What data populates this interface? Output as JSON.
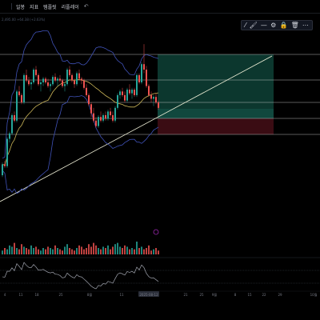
{
  "topbar": {
    "items": [
      {
        "label": "",
        "icon": "logo-icon"
      },
      {
        "label": ""
      },
      {
        "label": "일봉"
      },
      {
        "label": "지표"
      },
      {
        "label": "템플릿"
      },
      {
        "label": "리플레이"
      },
      {
        "label": "",
        "icon": "undo-icon"
      }
    ]
  },
  "status_line": "2,495.00 +64.38 (+2.63%)",
  "drawing_toolbar": {
    "tools": [
      {
        "icon": "pencil-icon",
        "glyph": "⁄"
      },
      {
        "icon": "palette-icon",
        "glyph": "🖌"
      },
      {
        "icon": "line-width-icon",
        "glyph": "—"
      },
      {
        "icon": "settings-icon",
        "glyph": "⚙"
      },
      {
        "icon": "lock-icon",
        "glyph": "🔒"
      },
      {
        "icon": "delete-icon",
        "glyph": "🗑"
      },
      {
        "icon": "more-icon",
        "glyph": "⋯"
      }
    ]
  },
  "time_axis": {
    "labels": [
      "4",
      "11",
      "18",
      "25",
      "8월",
      "11",
      "2025-08-12",
      "21",
      "25",
      "9월",
      "8",
      "15",
      "22",
      "29",
      "10월"
    ],
    "highlighted": "2025-08-12"
  },
  "colors": {
    "up": "#26a69a",
    "down": "#ef5350",
    "band": "#3f51b5",
    "ma": "#c9b458",
    "trendline": "#f0f0d8",
    "hline": "#d4d4d4",
    "profit_zone": "#0d3a30",
    "loss_zone": "#3d0d14"
  },
  "chart_data": {
    "type": "candlestick",
    "candles": [
      [
        2088,
        2130,
        2082,
        2124
      ],
      [
        2124,
        2136,
        2112,
        2118
      ],
      [
        2118,
        2214,
        2112,
        2208
      ],
      [
        2208,
        2232,
        2196,
        2226
      ],
      [
        2226,
        2292,
        2220,
        2286
      ],
      [
        2286,
        2298,
        2262,
        2268
      ],
      [
        2268,
        2370,
        2262,
        2364
      ],
      [
        2364,
        2382,
        2346,
        2352
      ],
      [
        2352,
        2358,
        2322,
        2328
      ],
      [
        2328,
        2424,
        2322,
        2418
      ],
      [
        2418,
        2436,
        2394,
        2400
      ],
      [
        2400,
        2412,
        2382,
        2388
      ],
      [
        2388,
        2400,
        2370,
        2394
      ],
      [
        2394,
        2442,
        2388,
        2436
      ],
      [
        2436,
        2448,
        2412,
        2418
      ],
      [
        2418,
        2424,
        2382,
        2388
      ],
      [
        2388,
        2400,
        2364,
        2394
      ],
      [
        2394,
        2412,
        2382,
        2406
      ],
      [
        2406,
        2412,
        2388,
        2394
      ],
      [
        2394,
        2406,
        2376,
        2382
      ],
      [
        2382,
        2394,
        2364,
        2388
      ],
      [
        2388,
        2418,
        2382,
        2412
      ],
      [
        2412,
        2424,
        2394,
        2400
      ],
      [
        2400,
        2412,
        2382,
        2406
      ],
      [
        2406,
        2418,
        2394,
        2400
      ],
      [
        2400,
        2406,
        2376,
        2382
      ],
      [
        2382,
        2394,
        2364,
        2388
      ],
      [
        2388,
        2442,
        2382,
        2436
      ],
      [
        2436,
        2448,
        2412,
        2418
      ],
      [
        2418,
        2424,
        2394,
        2400
      ],
      [
        2400,
        2406,
        2376,
        2388
      ],
      [
        2388,
        2430,
        2382,
        2424
      ],
      [
        2424,
        2436,
        2400,
        2406
      ],
      [
        2406,
        2412,
        2388,
        2400
      ],
      [
        2400,
        2406,
        2370,
        2376
      ],
      [
        2376,
        2388,
        2346,
        2352
      ],
      [
        2352,
        2358,
        2316,
        2322
      ],
      [
        2322,
        2328,
        2280,
        2292
      ],
      [
        2292,
        2310,
        2262,
        2268
      ],
      [
        2268,
        2280,
        2244,
        2250
      ],
      [
        2250,
        2286,
        2244,
        2280
      ],
      [
        2280,
        2298,
        2262,
        2268
      ],
      [
        2268,
        2292,
        2262,
        2286
      ],
      [
        2286,
        2298,
        2268,
        2274
      ],
      [
        2274,
        2304,
        2268,
        2298
      ],
      [
        2298,
        2310,
        2280,
        2286
      ],
      [
        2286,
        2298,
        2262,
        2268
      ],
      [
        2268,
        2316,
        2262,
        2310
      ],
      [
        2310,
        2358,
        2304,
        2352
      ],
      [
        2352,
        2370,
        2340,
        2364
      ],
      [
        2364,
        2376,
        2346,
        2352
      ],
      [
        2352,
        2364,
        2328,
        2334
      ],
      [
        2334,
        2376,
        2328,
        2370
      ],
      [
        2370,
        2388,
        2352,
        2358
      ],
      [
        2358,
        2376,
        2340,
        2370
      ],
      [
        2370,
        2376,
        2346,
        2352
      ],
      [
        2352,
        2424,
        2346,
        2418
      ],
      [
        2418,
        2424,
        2388,
        2394
      ],
      [
        2394,
        2460,
        2388,
        2454
      ],
      [
        2454,
        2520,
        2424,
        2436
      ],
      [
        2436,
        2448,
        2376,
        2382
      ],
      [
        2382,
        2388,
        2346,
        2352
      ],
      [
        2352,
        2364,
        2328,
        2340
      ],
      [
        2340,
        2352,
        2316,
        2346
      ],
      [
        2346,
        2358,
        2322,
        2328
      ],
      [
        2328,
        2334,
        2304,
        2310
      ]
    ],
    "volume_scale": [
      3,
      5,
      4,
      7,
      6,
      9,
      5,
      4,
      8,
      6,
      5,
      4,
      7,
      5,
      6,
      4,
      3,
      5,
      4,
      6,
      5,
      4,
      7,
      5,
      4,
      3,
      6,
      8,
      5,
      4,
      3,
      5,
      7,
      6,
      4,
      5,
      8,
      6,
      9,
      7,
      5,
      4,
      6,
      5,
      7,
      4,
      6,
      8,
      9,
      6,
      5,
      7,
      6,
      4,
      5,
      4,
      10,
      5,
      6,
      4,
      5,
      7,
      3,
      4,
      5,
      3
    ]
  }
}
